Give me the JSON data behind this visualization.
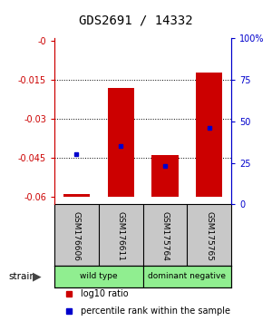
{
  "title": "GDS2691 / 14332",
  "samples": [
    "GSM176606",
    "GSM176611",
    "GSM175764",
    "GSM175765"
  ],
  "log10_ratio": [
    -0.059,
    -0.018,
    -0.044,
    -0.012
  ],
  "percentile_rank": [
    30,
    35,
    23,
    46
  ],
  "bar_bottom": -0.06,
  "ylim_left": [
    -0.063,
    0.001
  ],
  "ylim_right": [
    0,
    100
  ],
  "yticks_left": [
    0,
    -0.015,
    -0.03,
    -0.045,
    -0.06
  ],
  "yticks_left_labels": [
    "-0",
    "-0.015",
    "-0.03",
    "-0.045",
    "-0.06"
  ],
  "yticks_right": [
    0,
    25,
    50,
    75,
    100
  ],
  "yticks_right_labels": [
    "0",
    "25",
    "50",
    "75",
    "100%"
  ],
  "bar_color": "#cc0000",
  "dot_color": "#0000cc",
  "bg_color": "#ffffff",
  "sample_bg_color": "#c8c8c8",
  "group_color": "#90ee90",
  "left_axis_color": "#cc0000",
  "right_axis_color": "#0000cc",
  "legend_red": "log10 ratio",
  "legend_blue": "percentile rank within the sample"
}
